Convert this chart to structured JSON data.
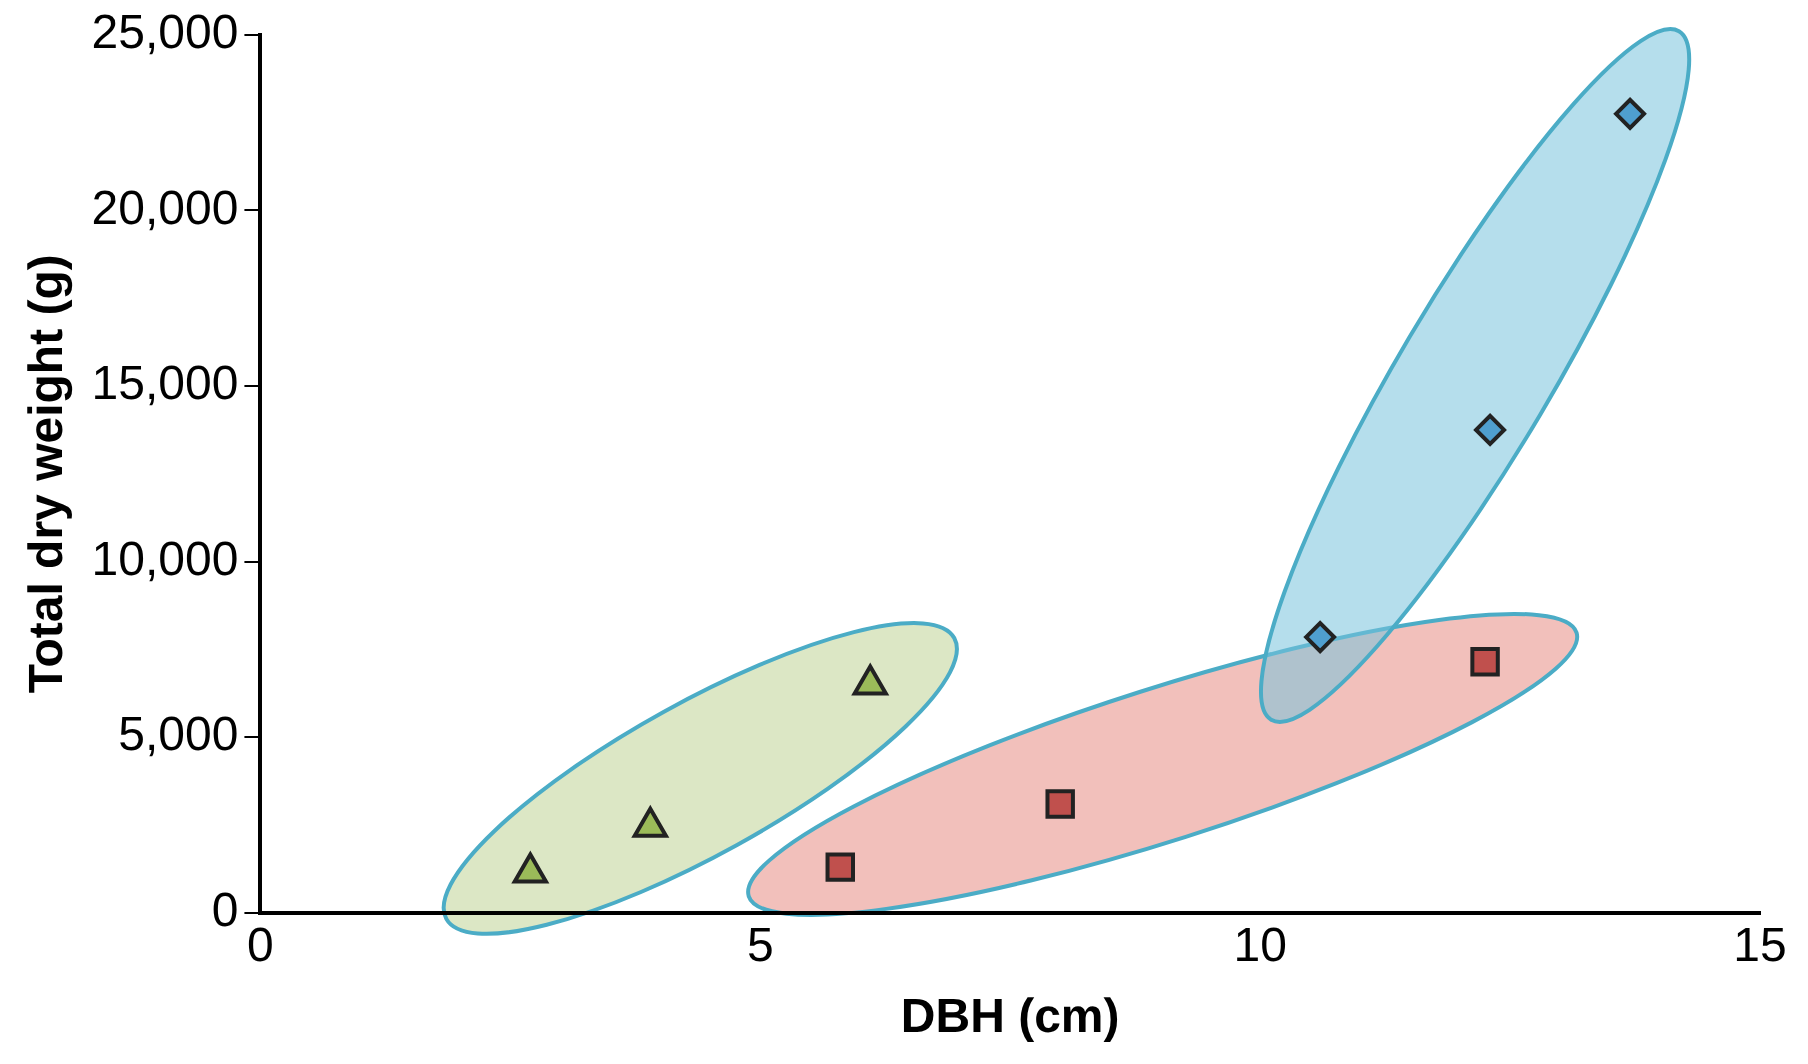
{
  "chart_data": {
    "type": "scatter",
    "xlabel": "DBH (cm)",
    "ylabel": "Total dry weight (g)",
    "xlim": [
      0,
      15
    ],
    "xticks": [
      0,
      5,
      10,
      15
    ],
    "ylim": [
      0,
      25000
    ],
    "yticks": [
      {
        "value": 0,
        "label": "0"
      },
      {
        "value": 5000,
        "label": "5,000"
      },
      {
        "value": 10000,
        "label": "10,000"
      },
      {
        "value": 15000,
        "label": "15,000"
      },
      {
        "value": 20000,
        "label": "20,000"
      },
      {
        "value": 25000,
        "label": "25,000"
      }
    ],
    "grid": false,
    "legend": false,
    "series": [
      {
        "color": "#9bbb59",
        "marker": "triangle",
        "x": [
          2.7,
          3.9,
          6.1
        ],
        "values": [
          1150,
          2450,
          6500
        ]
      },
      {
        "color": "#c0504d",
        "marker": "square",
        "x": [
          5.8,
          8.0,
          12.25
        ],
        "values": [
          1300,
          3100,
          7150
        ]
      },
      {
        "color": "#4f9fcf",
        "marker": "diamond",
        "x": [
          10.6,
          12.3,
          13.7
        ],
        "values": [
          7850,
          13750,
          22750
        ]
      }
    ]
  }
}
